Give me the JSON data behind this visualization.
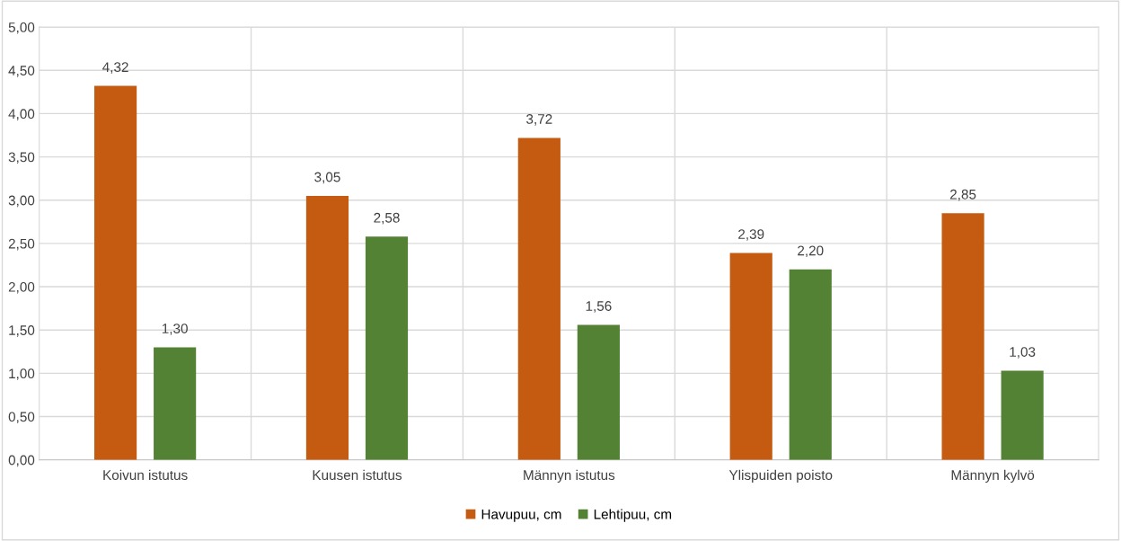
{
  "chart_data": {
    "type": "bar",
    "categories": [
      "Koivun istutus",
      "Kuusen istutus",
      "Männyn istutus",
      "Ylispuiden poisto",
      "Männyn kylvö"
    ],
    "series": [
      {
        "name": "Havupuu, cm",
        "color": "#c55a11",
        "values": [
          4.32,
          3.05,
          3.72,
          2.39,
          2.85
        ],
        "value_labels": [
          "4,32",
          "3,05",
          "3,72",
          "2,39",
          "2,85"
        ]
      },
      {
        "name": "Lehtipuu, cm",
        "color": "#548235",
        "values": [
          1.3,
          2.58,
          1.56,
          2.2,
          1.03
        ],
        "value_labels": [
          "1,30",
          "2,58",
          "1,56",
          "2,20",
          "1,03"
        ]
      }
    ],
    "ylim": [
      0,
      5
    ],
    "yticks": [
      {
        "value": 0,
        "label": "0,00"
      },
      {
        "value": 0.5,
        "label": "0,50"
      },
      {
        "value": 1,
        "label": "1,00"
      },
      {
        "value": 1.5,
        "label": "1,50"
      },
      {
        "value": 2,
        "label": "2,00"
      },
      {
        "value": 2.5,
        "label": "2,50"
      },
      {
        "value": 3,
        "label": "3,00"
      },
      {
        "value": 3.5,
        "label": "3,50"
      },
      {
        "value": 4,
        "label": "4,00"
      },
      {
        "value": 4.5,
        "label": "4,50"
      },
      {
        "value": 5,
        "label": "5,00"
      }
    ],
    "grid": true,
    "legend": "bottom"
  }
}
